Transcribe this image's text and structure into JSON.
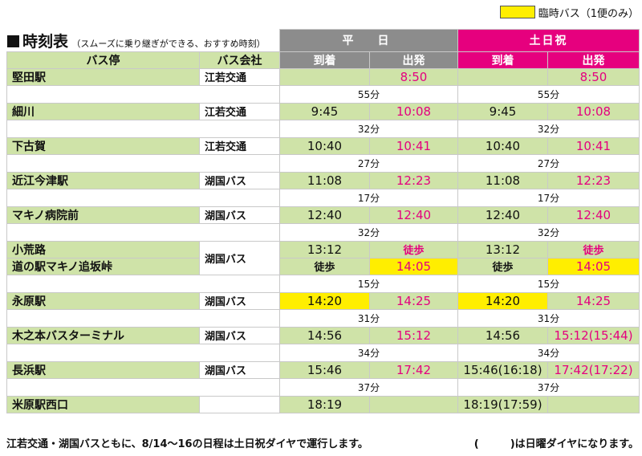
{
  "legend": {
    "label": "臨時バス（1便のみ）",
    "color": "#ffee00"
  },
  "title": {
    "main": "時刻表",
    "sub": "（スムーズに乗り継ぎができる、おすすめ時刻）"
  },
  "headers": {
    "weekday": "平　日",
    "holiday": "土日祝",
    "stop": "バス停",
    "company": "バス会社",
    "arrive": "到着",
    "depart": "出発"
  },
  "colors": {
    "green": "#cfe3a8",
    "pink": "#e6007e",
    "gray": "#8c8c8c",
    "yellow": "#ffee00"
  },
  "rows": [
    {
      "stop": "堅田駅",
      "company": "江若交通",
      "wd_arr": "",
      "wd_dep": "8:50",
      "ho_arr": "",
      "ho_dep": "8:50",
      "wd_dur": "55分",
      "ho_dur": "55分"
    },
    {
      "stop": "細川",
      "company": "江若交通",
      "wd_arr": "9:45",
      "wd_dep": "10:08",
      "ho_arr": "9:45",
      "ho_dep": "10:08",
      "wd_dur": "32分",
      "ho_dur": "32分"
    },
    {
      "stop": "下古賀",
      "company": "江若交通",
      "wd_arr": "10:40",
      "wd_dep": "10:41",
      "ho_arr": "10:40",
      "ho_dep": "10:41",
      "wd_dur": "27分",
      "ho_dur": "27分"
    },
    {
      "stop": "近江今津駅",
      "company": "湖国バス",
      "wd_arr": "11:08",
      "wd_dep": "12:23",
      "ho_arr": "11:08",
      "ho_dep": "12:23",
      "wd_dur": "17分",
      "ho_dur": "17分"
    },
    {
      "stop": "マキノ病院前",
      "company": "湖国バス",
      "wd_arr": "12:40",
      "wd_dep": "12:40",
      "ho_arr": "12:40",
      "ho_dep": "12:40",
      "wd_dur": "32分",
      "ho_dur": "32分"
    }
  ],
  "walk_block": {
    "stop1": "小荒路",
    "stop2": "道の駅マキノ追坂峠",
    "company": "湖国バス",
    "wd_arr1": "13:12",
    "wd_dep1": "徒歩",
    "ho_arr1": "13:12",
    "ho_dep1": "徒歩",
    "wd_arr2": "徒歩",
    "wd_dep2": "14:05",
    "ho_arr2": "徒歩",
    "ho_dep2": "14:05",
    "wd_dur": "15分",
    "ho_dur": "15分"
  },
  "rows2": [
    {
      "stop": "永原駅",
      "company": "湖国バス",
      "wd_arr": "14:20",
      "wd_dep": "14:25",
      "ho_arr": "14:20",
      "ho_dep": "14:25",
      "wd_dur": "31分",
      "ho_dur": "31分"
    },
    {
      "stop": "木之本バスターミナル",
      "company": "湖国バス",
      "wd_arr": "14:56",
      "wd_dep": "15:12",
      "ho_arr": "14:56",
      "ho_dep": "15:12(15:44)",
      "wd_dur": "34分",
      "ho_dur": "34分"
    },
    {
      "stop": "長浜駅",
      "company": "湖国バス",
      "wd_arr": "15:46",
      "wd_dep": "17:42",
      "ho_arr": "15:46(16:18)",
      "ho_dep": "17:42(17:22)",
      "wd_dur": "37分",
      "ho_dur": "37分"
    },
    {
      "stop": "米原駅西口",
      "company": "",
      "wd_arr": "18:19",
      "wd_dep": "",
      "ho_arr": "18:19(17:59)",
      "ho_dep": ""
    }
  ],
  "footer": {
    "left": "江若交通・湖国バスともに、8/14〜16の日程は土日祝ダイヤで運行します。",
    "right": "(　　　)は日曜ダイヤになります。"
  }
}
